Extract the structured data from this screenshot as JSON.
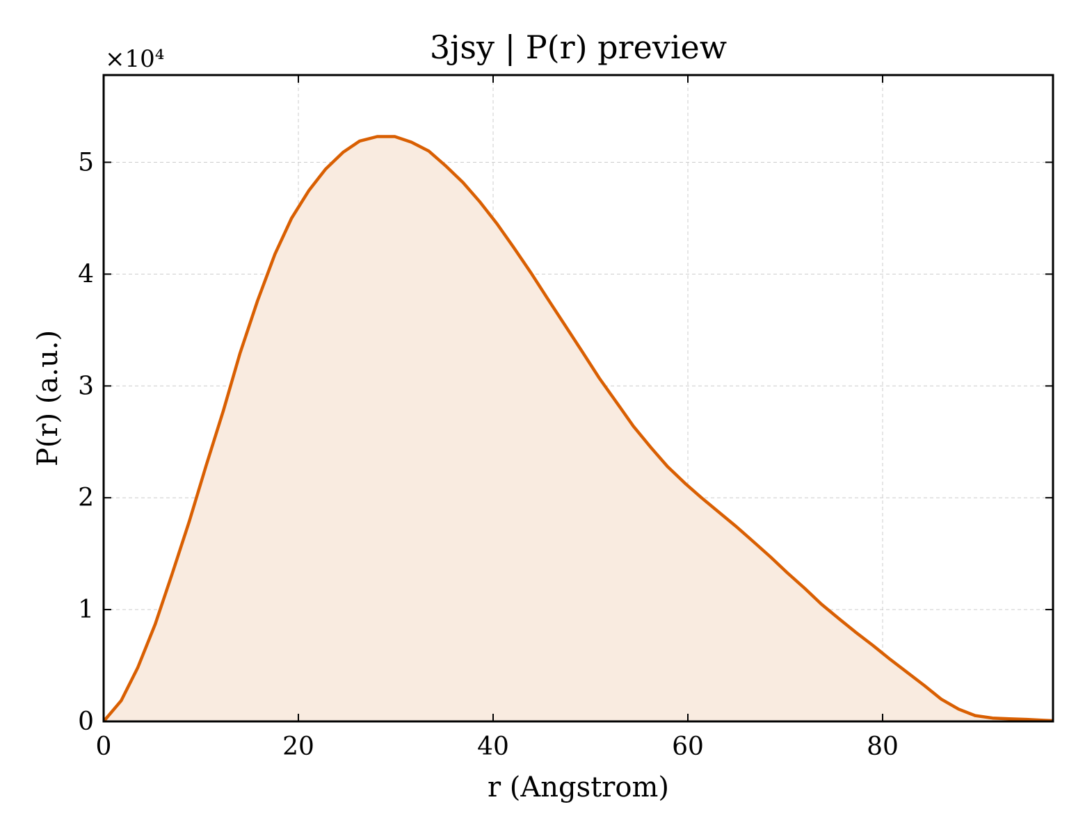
{
  "chart_data": {
    "type": "area",
    "title": "3jsy | P(r) preview",
    "xlabel": "r (Angstrom)",
    "ylabel": "P(r) (a.u.)",
    "y_offset_label": "×10⁴",
    "xlim": [
      0,
      97.5
    ],
    "ylim": [
      0,
      57800
    ],
    "xticks": [
      0,
      20,
      40,
      60,
      80
    ],
    "yticks": [
      0,
      10000,
      20000,
      30000,
      40000,
      50000
    ],
    "ytick_labels": [
      "0",
      "1",
      "2",
      "3",
      "4",
      "5"
    ],
    "grid": true,
    "line_color": "#d95f02",
    "fill_color": "#f9ebe0",
    "x": [
      0,
      1.8,
      3.5,
      5.3,
      7.0,
      8.8,
      10.5,
      12.3,
      14.0,
      15.8,
      17.6,
      19.3,
      21.1,
      22.8,
      24.6,
      26.3,
      28.1,
      29.9,
      31.6,
      33.4,
      35.1,
      36.9,
      38.6,
      40.4,
      42.1,
      43.9,
      45.6,
      47.4,
      49.2,
      50.9,
      52.7,
      54.4,
      56.2,
      57.9,
      59.7,
      61.4,
      63.2,
      65.0,
      66.7,
      68.5,
      70.2,
      72.0,
      73.7,
      75.5,
      77.2,
      79.0,
      80.7,
      82.5,
      84.3,
      86.0,
      87.8,
      89.5,
      91.3,
      93.0,
      94.8,
      96.5,
      97.5
    ],
    "y": [
      0,
      1850,
      4800,
      8700,
      13100,
      17900,
      22800,
      27800,
      32900,
      37600,
      41800,
      45000,
      47500,
      49400,
      50900,
      51900,
      52300,
      52300,
      51800,
      51000,
      49700,
      48200,
      46500,
      44500,
      42400,
      40100,
      37800,
      35400,
      33000,
      30700,
      28500,
      26400,
      24500,
      22800,
      21300,
      20000,
      18700,
      17400,
      16100,
      14700,
      13300,
      11900,
      10500,
      9200,
      8000,
      6800,
      5600,
      4400,
      3200,
      2000,
      1100,
      520,
      300,
      230,
      180,
      100,
      60
    ]
  }
}
